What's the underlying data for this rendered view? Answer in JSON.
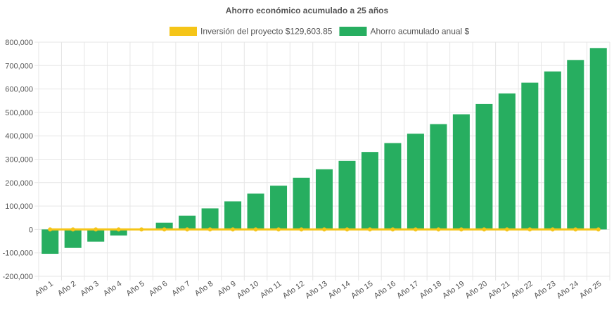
{
  "chart_data": {
    "type": "bar",
    "title": "Ahorro económico acumulado a 25 años",
    "xlabel": "",
    "ylabel": "",
    "ylim": [
      -200000,
      800000
    ],
    "y_ticks": [
      "800,000",
      "700,000",
      "600,000",
      "500,000",
      "400,000",
      "300,000",
      "200,000",
      "100,000",
      "0",
      "-100,000",
      "-200,000"
    ],
    "categories": [
      "Año 1",
      "Año 2",
      "Año 3",
      "Año 4",
      "Año 5",
      "Año 6",
      "Año 7",
      "Año 8",
      "Año 9",
      "Año 10",
      "Año 11",
      "Año 12",
      "Año 13",
      "Año 14",
      "Año 15",
      "Año 16",
      "Año 17",
      "Año 18",
      "Año 19",
      "Año 20",
      "Año 21",
      "Año 22",
      "Año 23",
      "Año 24",
      "Año 25"
    ],
    "grid": true,
    "legend_position": "top",
    "series": [
      {
        "name": "Inversión del proyecto $129,603.85",
        "type": "line",
        "color": "#f5c518",
        "values": [
          0,
          0,
          0,
          0,
          0,
          0,
          0,
          0,
          0,
          0,
          0,
          0,
          0,
          0,
          0,
          0,
          0,
          0,
          0,
          0,
          0,
          0,
          0,
          0,
          0
        ]
      },
      {
        "name": "Ahorro acumulado anual $",
        "type": "bar",
        "color": "#27ae60",
        "values": [
          -104000,
          -79000,
          -52000,
          -26000,
          0,
          29000,
          59000,
          90000,
          120000,
          153000,
          187000,
          221000,
          257000,
          293000,
          331000,
          369000,
          409000,
          450000,
          492000,
          536000,
          581000,
          627000,
          675000,
          724000,
          775000
        ]
      }
    ]
  }
}
